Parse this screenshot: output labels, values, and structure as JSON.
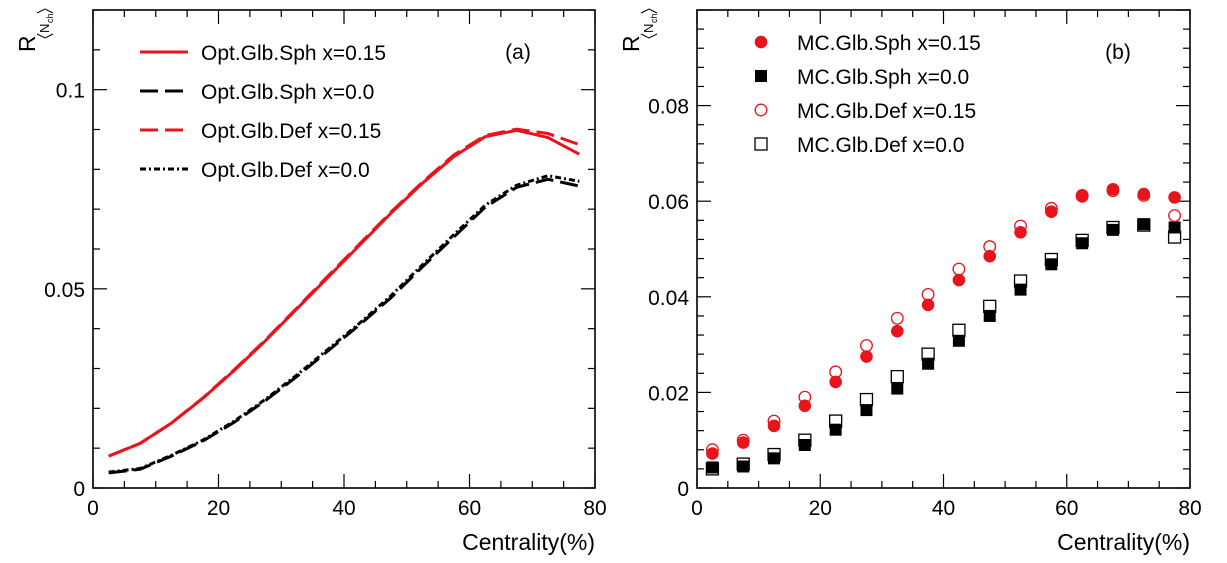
{
  "chart_data": [
    {
      "panel": "a",
      "type": "line",
      "label": "(a)",
      "xlabel": "Centrality(%)",
      "ylabel": {
        "main": "R",
        "sub": "N",
        "subsub": "ch"
      },
      "xlim": [
        0,
        80
      ],
      "ylim": [
        0,
        0.12
      ],
      "xticks": [
        0,
        20,
        40,
        60,
        80
      ],
      "yticks": [
        0,
        0.05,
        0.1
      ],
      "ytick_labels": [
        "0",
        "0.05",
        "0.1"
      ],
      "grid": false,
      "legend_position": "top-left",
      "x": [
        2.5,
        7.5,
        12.5,
        17.5,
        22.5,
        27.5,
        32.5,
        37.5,
        42.5,
        47.5,
        52.5,
        57.5,
        62.5,
        67.5,
        72.5,
        77.5
      ],
      "series": [
        {
          "name": "Opt.Glb.Sph x=0.15",
          "color": "#e8141c",
          "dash": "solid",
          "values": [
            0.008,
            0.0112,
            0.0163,
            0.0225,
            0.0295,
            0.037,
            0.045,
            0.053,
            0.061,
            0.069,
            0.0765,
            0.0832,
            0.0882,
            0.0898,
            0.088,
            0.0838
          ]
        },
        {
          "name": "Opt.Glb.Sph x=0.0",
          "color": "#000000",
          "dash": "long",
          "values": [
            0.0038,
            0.0047,
            0.008,
            0.0118,
            0.0165,
            0.022,
            0.028,
            0.0345,
            0.041,
            0.0478,
            0.0555,
            0.063,
            0.0705,
            0.0755,
            0.0775,
            0.0758
          ]
        },
        {
          "name": "Opt.Glb.Def x=0.15",
          "color": "#e8141c",
          "dash": "long",
          "values": [
            0.008,
            0.0112,
            0.0163,
            0.0226,
            0.0297,
            0.0372,
            0.0452,
            0.0533,
            0.0613,
            0.0693,
            0.0768,
            0.0836,
            0.0885,
            0.0901,
            0.089,
            0.0862
          ]
        },
        {
          "name": "Opt.Glb.Def x=0.0",
          "color": "#000000",
          "dash": "dashdot",
          "values": [
            0.004,
            0.0049,
            0.0082,
            0.012,
            0.0168,
            0.0223,
            0.0284,
            0.0349,
            0.0414,
            0.0483,
            0.056,
            0.0636,
            0.071,
            0.076,
            0.0784,
            0.077
          ]
        }
      ]
    },
    {
      "panel": "b",
      "type": "scatter",
      "label": "(b)",
      "xlabel": "Centrality(%)",
      "ylabel": {
        "main": "R",
        "sub": "N",
        "subsub": "ch"
      },
      "xlim": [
        0,
        80
      ],
      "ylim": [
        0,
        0.1
      ],
      "xticks": [
        0,
        20,
        40,
        60,
        80
      ],
      "yticks": [
        0,
        0.02,
        0.04,
        0.06,
        0.08
      ],
      "ytick_labels": [
        "0",
        "0.02",
        "0.04",
        "0.06",
        "0.08"
      ],
      "grid": false,
      "legend_position": "top-left",
      "x": [
        2.5,
        7.5,
        12.5,
        17.5,
        22.5,
        27.5,
        32.5,
        37.5,
        42.5,
        47.5,
        52.5,
        57.5,
        62.5,
        67.5,
        72.5,
        77.5
      ],
      "series": [
        {
          "name": "MC.Glb.Sph x=0.15",
          "color": "#e8141c",
          "marker": "circle-filled",
          "values": [
            0.0072,
            0.0095,
            0.013,
            0.0172,
            0.0222,
            0.0275,
            0.0328,
            0.0383,
            0.0435,
            0.0485,
            0.0535,
            0.0578,
            0.061,
            0.0625,
            0.0615,
            0.0608
          ]
        },
        {
          "name": "MC.Glb.Sph x=0.0",
          "color": "#000000",
          "marker": "square-filled",
          "values": [
            0.0043,
            0.0045,
            0.0062,
            0.009,
            0.0122,
            0.0163,
            0.0208,
            0.026,
            0.0308,
            0.036,
            0.0415,
            0.0468,
            0.0512,
            0.054,
            0.0552,
            0.0545
          ]
        },
        {
          "name": "MC.Glb.Def x=0.15",
          "color": "#e8141c",
          "marker": "circle-open",
          "values": [
            0.008,
            0.01,
            0.014,
            0.019,
            0.0243,
            0.0298,
            0.0355,
            0.0405,
            0.0458,
            0.0505,
            0.0548,
            0.0585,
            0.0612,
            0.0622,
            0.0612,
            0.057
          ]
        },
        {
          "name": "MC.Glb.Def x=0.0",
          "color": "#000000",
          "marker": "square-open",
          "values": [
            0.004,
            0.005,
            0.007,
            0.01,
            0.014,
            0.0185,
            0.0233,
            0.028,
            0.033,
            0.038,
            0.0433,
            0.0478,
            0.0518,
            0.0545,
            0.055,
            0.0525
          ]
        }
      ]
    }
  ]
}
